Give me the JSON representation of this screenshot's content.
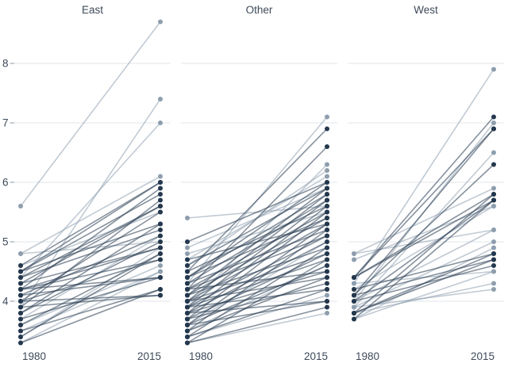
{
  "chart_data": {
    "type": "slopegraph",
    "facet_labels": [
      "East",
      "Other",
      "West"
    ],
    "x_categories": [
      "1980",
      "2015"
    ],
    "yticks": [
      4,
      5,
      6,
      7,
      8
    ],
    "ylim": [
      2.9,
      9.1
    ],
    "legend": "none",
    "grid": "horizontal",
    "colors": {
      "light": "#8e9eae",
      "dark": "#24384e",
      "gridline": "#e1e5e9",
      "tick_mark": "#9fa9b2",
      "text": "#3e4a5a",
      "background": "#ffffff"
    },
    "facets": [
      {
        "label": "East",
        "series": [
          [
            5.6,
            8.7,
            "light"
          ],
          [
            3.9,
            7.4,
            "light"
          ],
          [
            4.4,
            7.0,
            "light"
          ],
          [
            4.8,
            6.1,
            "light"
          ],
          [
            4.6,
            5.5,
            "light"
          ],
          [
            3.6,
            4.6,
            "light"
          ],
          [
            3.5,
            4.5,
            "light"
          ],
          [
            3.3,
            4.5,
            "light"
          ],
          [
            4.8,
            5.0,
            "light"
          ],
          [
            3.7,
            5.1,
            "light"
          ],
          [
            3.4,
            4.9,
            "light"
          ],
          [
            4.6,
            6.0,
            "dark"
          ],
          [
            4.5,
            6.0,
            "dark"
          ],
          [
            4.2,
            5.9,
            "dark"
          ],
          [
            4.5,
            5.8,
            "dark"
          ],
          [
            3.9,
            5.7,
            "dark"
          ],
          [
            4.4,
            5.6,
            "dark"
          ],
          [
            4.3,
            5.6,
            "dark"
          ],
          [
            4.0,
            5.5,
            "dark"
          ],
          [
            3.8,
            5.3,
            "dark"
          ],
          [
            4.5,
            5.3,
            "dark"
          ],
          [
            4.4,
            5.2,
            "dark"
          ],
          [
            4.1,
            5.1,
            "dark"
          ],
          [
            3.8,
            5.0,
            "dark"
          ],
          [
            4.3,
            4.9,
            "dark"
          ],
          [
            4.2,
            4.9,
            "dark"
          ],
          [
            3.6,
            4.8,
            "dark"
          ],
          [
            3.4,
            4.8,
            "dark"
          ],
          [
            4.0,
            4.7,
            "dark"
          ],
          [
            4.2,
            4.7,
            "dark"
          ],
          [
            4.1,
            4.4,
            "dark"
          ],
          [
            4.2,
            4.4,
            "dark"
          ],
          [
            3.3,
            4.2,
            "dark"
          ],
          [
            3.5,
            4.2,
            "dark"
          ],
          [
            3.9,
            4.1,
            "dark"
          ],
          [
            4.0,
            4.1,
            "dark"
          ],
          [
            3.7,
            4.4,
            "dark"
          ]
        ]
      },
      {
        "label": "Other",
        "series": [
          [
            5.4,
            5.6,
            "light"
          ],
          [
            4.3,
            7.1,
            "light"
          ],
          [
            3.9,
            6.3,
            "light"
          ],
          [
            4.6,
            6.2,
            "light"
          ],
          [
            4.7,
            6.1,
            "light"
          ],
          [
            4.9,
            5.9,
            "light"
          ],
          [
            3.4,
            4.1,
            "light"
          ],
          [
            3.3,
            3.8,
            "light"
          ],
          [
            4.8,
            5.5,
            "light"
          ],
          [
            3.5,
            4.6,
            "light"
          ],
          [
            3.6,
            5.0,
            "light"
          ],
          [
            4.5,
            6.9,
            "dark"
          ],
          [
            4.2,
            6.6,
            "dark"
          ],
          [
            5.0,
            6.0,
            "dark"
          ],
          [
            4.4,
            6.0,
            "dark"
          ],
          [
            4.1,
            5.9,
            "dark"
          ],
          [
            4.6,
            5.9,
            "dark"
          ],
          [
            4.0,
            5.8,
            "dark"
          ],
          [
            4.4,
            5.8,
            "dark"
          ],
          [
            3.9,
            5.7,
            "dark"
          ],
          [
            4.3,
            5.7,
            "dark"
          ],
          [
            4.5,
            5.6,
            "dark"
          ],
          [
            3.8,
            5.6,
            "dark"
          ],
          [
            4.2,
            5.5,
            "dark"
          ],
          [
            3.7,
            5.5,
            "dark"
          ],
          [
            4.1,
            5.4,
            "dark"
          ],
          [
            4.4,
            5.4,
            "dark"
          ],
          [
            3.6,
            5.3,
            "dark"
          ],
          [
            4.0,
            5.3,
            "dark"
          ],
          [
            4.7,
            5.3,
            "dark"
          ],
          [
            4.3,
            5.2,
            "dark"
          ],
          [
            3.5,
            5.2,
            "dark"
          ],
          [
            3.9,
            5.1,
            "dark"
          ],
          [
            4.2,
            5.1,
            "dark"
          ],
          [
            3.8,
            5.0,
            "dark"
          ],
          [
            3.4,
            4.9,
            "dark"
          ],
          [
            4.1,
            4.9,
            "dark"
          ],
          [
            3.7,
            4.8,
            "dark"
          ],
          [
            4.0,
            4.8,
            "dark"
          ],
          [
            3.3,
            4.7,
            "dark"
          ],
          [
            3.9,
            4.7,
            "dark"
          ],
          [
            3.6,
            4.6,
            "dark"
          ],
          [
            4.2,
            4.5,
            "dark"
          ],
          [
            3.8,
            4.5,
            "dark"
          ],
          [
            3.5,
            4.4,
            "dark"
          ],
          [
            4.0,
            4.4,
            "dark"
          ],
          [
            3.7,
            4.3,
            "dark"
          ],
          [
            3.4,
            4.2,
            "dark"
          ],
          [
            3.9,
            4.2,
            "dark"
          ],
          [
            3.6,
            4.0,
            "dark"
          ],
          [
            3.8,
            4.0,
            "dark"
          ],
          [
            3.3,
            3.9,
            "dark"
          ]
        ]
      },
      {
        "label": "West",
        "series": [
          [
            4.3,
            7.9,
            "light"
          ],
          [
            4.0,
            7.0,
            "light"
          ],
          [
            3.9,
            6.5,
            "light"
          ],
          [
            4.8,
            5.9,
            "light"
          ],
          [
            4.7,
            5.6,
            "light"
          ],
          [
            4.8,
            5.2,
            "light"
          ],
          [
            3.9,
            5.0,
            "light"
          ],
          [
            3.7,
            4.9,
            "light"
          ],
          [
            4.3,
            4.5,
            "light"
          ],
          [
            3.9,
            4.2,
            "light"
          ],
          [
            3.7,
            4.5,
            "light"
          ],
          [
            4.0,
            5.2,
            "light"
          ],
          [
            3.8,
            4.3,
            "light"
          ],
          [
            4.2,
            5.6,
            "light"
          ],
          [
            4.4,
            7.1,
            "dark"
          ],
          [
            4.1,
            6.9,
            "dark"
          ],
          [
            4.4,
            6.9,
            "dark"
          ],
          [
            4.1,
            6.3,
            "dark"
          ],
          [
            4.4,
            5.8,
            "dark"
          ],
          [
            3.8,
            5.8,
            "dark"
          ],
          [
            4.0,
            5.7,
            "dark"
          ],
          [
            4.4,
            5.7,
            "dark"
          ],
          [
            3.7,
            5.7,
            "dark"
          ],
          [
            4.2,
            4.8,
            "dark"
          ],
          [
            3.8,
            4.8,
            "dark"
          ],
          [
            4.1,
            4.7,
            "dark"
          ],
          [
            3.8,
            4.7,
            "dark"
          ],
          [
            4.0,
            4.6,
            "dark"
          ]
        ]
      }
    ]
  }
}
